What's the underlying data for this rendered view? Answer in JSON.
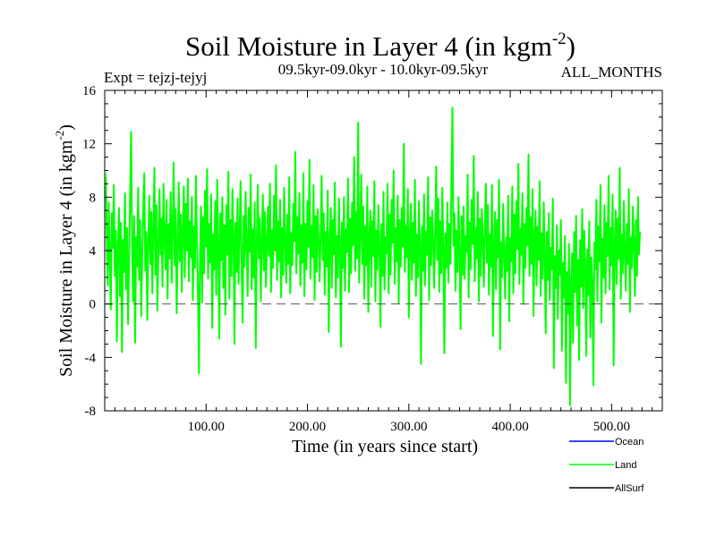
{
  "chart_data": {
    "type": "line",
    "title": "Soil Moisture in Layer 4 (in kgm",
    "title_sup": "-2",
    "title_close": ")",
    "subtitle_left": "Expt = tejzj-tejyj",
    "subtitle_center": "09.5kyr-09.0kyr - 10.0kyr-09.5kyr",
    "subtitle_right": "ALL_MONTHS",
    "xlabel": "Time (in years since start)",
    "ylabel": "Soil Moisture in Layer 4 (in kgm",
    "ylabel_sup": "-2",
    "ylabel_close": ")",
    "xlim": [
      0,
      550
    ],
    "ylim": [
      -8,
      16
    ],
    "xticks": [
      100,
      200,
      300,
      400,
      500
    ],
    "xtick_labels": [
      "100.00",
      "200.00",
      "300.00",
      "400.00",
      "500.00"
    ],
    "yticks": [
      -8,
      -4,
      0,
      4,
      8,
      12,
      16
    ],
    "ytick_labels": [
      "-8",
      "-4",
      "0",
      "4",
      "8",
      "12",
      "16"
    ],
    "reference_line": 0,
    "series": [
      {
        "name": "Land",
        "color": "#00ff00",
        "x_start": 1,
        "x_step": 1,
        "values": [
          9.8,
          5.2,
          1.4,
          7.6,
          3.1,
          -0.4,
          6.8,
          4.2,
          8.9,
          2.1,
          5.5,
          -2.8,
          3.9,
          7.2,
          0.6,
          6.1,
          -3.6,
          4.8,
          2.4,
          8.3,
          1.1,
          5.7,
          -1.5,
          3.3,
          7.9,
          12.9,
          4.4,
          0.2,
          6.6,
          -2.9,
          5.0,
          2.8,
          8.7,
          1.8,
          6.3,
          -0.9,
          3.6,
          7.0,
          9.8,
          2.5,
          5.4,
          -1.2,
          4.7,
          8.1,
          3.0,
          6.9,
          0.8,
          5.9,
          10.2,
          2.2,
          7.4,
          -0.5,
          4.1,
          8.6,
          3.7,
          6.4,
          1.3,
          9.0,
          5.1,
          2.6,
          7.8,
          0.4,
          6.0,
          3.4,
          8.4,
          1.6,
          5.6,
          10.6,
          2.9,
          7.1,
          -0.7,
          4.5,
          9.1,
          3.2,
          6.7,
          0.9,
          5.3,
          8.8,
          2.0,
          7.5,
          4.0,
          9.4,
          1.7,
          6.2,
          3.5,
          8.0,
          0.3,
          5.8,
          2.7,
          9.6,
          4.6,
          1.0,
          -5.2,
          3.8,
          7.3,
          0.1,
          6.5,
          2.3,
          8.5,
          4.3,
          10.1,
          1.9,
          6.0,
          3.1,
          8.2,
          -1.8,
          5.2,
          2.6,
          7.7,
          0.7,
          9.3,
          4.1,
          -2.6,
          6.8,
          3.3,
          8.0,
          1.2,
          5.9,
          -0.8,
          7.4,
          3.7,
          9.9,
          0.4,
          6.3,
          2.1,
          8.6,
          4.8,
          -3.0,
          6.1,
          2.4,
          7.9,
          1.5,
          5.4,
          9.2,
          3.0,
          -1.4,
          6.6,
          2.8,
          8.4,
          4.4,
          0.6,
          7.2,
          3.9,
          9.7,
          1.1,
          5.6,
          2.0,
          7.6,
          -3.3,
          4.6,
          8.9,
          3.4,
          6.4,
          0.2,
          5.0,
          8.2,
          2.5,
          6.9,
          1.3,
          4.2,
          7.3,
          3.6,
          9.0,
          0.9,
          5.5,
          2.7,
          8.1,
          4.0,
          10.4,
          1.8,
          6.2,
          3.2,
          7.8,
          0.5,
          5.7,
          2.2,
          8.7,
          4.5,
          1.6,
          6.7,
          3.0,
          9.5,
          0.8,
          5.3,
          2.9,
          7.5,
          4.7,
          11.4,
          2.3,
          6.5,
          3.8,
          8.3,
          1.4,
          5.9,
          3.1,
          9.8,
          0.6,
          6.0,
          2.6,
          7.7,
          4.3,
          10.8,
          1.9,
          5.8,
          3.5,
          8.9,
          0.3,
          6.6,
          2.4,
          7.1,
          4.9,
          1.7,
          5.2,
          9.6,
          3.3,
          6.8,
          0.7,
          5.4,
          2.8,
          8.5,
          -2.1,
          4.6,
          7.2,
          1.2,
          6.3,
          3.7,
          9.1,
          0.5,
          5.1,
          2.0,
          7.9,
          4.2,
          -3.2,
          6.1,
          2.7,
          8.0,
          1.0,
          5.6,
          3.9,
          9.4,
          0.9,
          6.4,
          2.3,
          7.6,
          4.4,
          11.0,
          2.5,
          6.9,
          3.4,
          13.6,
          1.6,
          5.3,
          9.7,
          3.0,
          7.3,
          0.4,
          5.8,
          2.9,
          8.8,
          -0.6,
          4.8,
          7.0,
          1.3,
          6.2,
          3.6,
          9.2,
          0.2,
          5.5,
          2.6,
          7.4,
          4.1,
          -1.7,
          6.0,
          2.1,
          8.4,
          1.1,
          5.0,
          3.8,
          9.0,
          0.8,
          6.7,
          2.2,
          7.8,
          4.6,
          10.0,
          1.5,
          5.7,
          3.2,
          8.1,
          0.1,
          6.3,
          2.8,
          7.2,
          4.3,
          12.0,
          2.4,
          5.9,
          3.5,
          8.6,
          -1.0,
          4.9,
          7.5,
          1.8,
          6.1,
          3.1,
          9.3,
          0.6,
          5.2,
          2.0,
          7.7,
          4.0,
          -4.5,
          5.8,
          2.5,
          8.2,
          1.4,
          5.4,
          3.7,
          9.5,
          0.3,
          6.5,
          2.9,
          7.0,
          4.7,
          1.2,
          5.6,
          10.3,
          3.3,
          7.9,
          0.9,
          6.2,
          2.3,
          8.7,
          4.2,
          -3.7,
          5.3,
          2.7,
          7.6,
          1.6,
          6.0,
          3.0,
          9.1,
          14.7,
          4.4,
          6.8,
          1.0,
          5.5,
          2.4,
          8.0,
          3.6,
          -1.9,
          6.6,
          2.2,
          7.3,
          1.9,
          5.1,
          3.9,
          9.7,
          0.5,
          6.1,
          2.6,
          7.8,
          4.5,
          11.1,
          1.7,
          5.7,
          3.4,
          8.4,
          0.2,
          6.4,
          2.1,
          7.1,
          4.8,
          1.3,
          5.9,
          9.0,
          3.1,
          7.4,
          0.7,
          5.2,
          2.8,
          8.9,
          -2.4,
          4.3,
          6.9,
          1.1,
          6.3,
          3.5,
          9.3,
          -3.4,
          4.6,
          2.0,
          7.5,
          3.8,
          0.4,
          5.0,
          2.5,
          8.1,
          -1.3,
          4.9,
          3.2,
          8.8,
          0.8,
          6.7,
          2.3,
          7.7,
          4.1,
          10.5,
          1.5,
          5.6,
          3.7,
          8.3,
          0.0,
          6.0,
          2.7,
          7.2,
          4.4,
          11.2,
          2.1,
          6.5,
          3.0,
          8.6,
          -0.9,
          4.7,
          7.0,
          1.4,
          5.8,
          3.3,
          9.2,
          0.6,
          5.3,
          1.9,
          7.6,
          3.9,
          -2.2,
          5.4,
          1.8,
          6.8,
          0.3,
          4.2,
          2.6,
          7.9,
          -4.8,
          3.6,
          1.2,
          5.9,
          -1.1,
          4.0,
          2.2,
          6.3,
          -3.5,
          3.1,
          0.5,
          5.1,
          -5.9,
          2.4,
          -0.7,
          4.5,
          -7.6,
          1.6,
          3.8,
          -2.9,
          5.4,
          0.9,
          6.6,
          -1.6,
          3.3,
          -4.2,
          4.8,
          1.3,
          7.1,
          -0.3,
          5.5,
          2.8,
          -3.9,
          4.1,
          0.7,
          6.2,
          -2.5,
          3.5,
          1.9,
          -6.1,
          4.6,
          2.6,
          7.8,
          0.2,
          5.8,
          3.2,
          8.9,
          -1.4,
          4.9,
          2.0,
          7.4,
          0.8,
          6.1,
          3.6,
          9.6,
          1.1,
          5.7,
          2.9,
          8.2,
          -4.6,
          4.3,
          7.0,
          1.5,
          6.4,
          3.4,
          10.2,
          0.4,
          5.2,
          2.3,
          7.7,
          4.0,
          1.0,
          6.0,
          3.0,
          8.6,
          -0.6,
          5.0,
          2.7,
          7.3,
          4.5,
          0.6,
          6.3,
          2.1,
          8.0,
          3.7,
          5.4
        ]
      },
      {
        "name": "Ocean",
        "color": "#0000ff",
        "values": []
      },
      {
        "name": "AllSurf",
        "color": "#000000",
        "values": []
      }
    ],
    "legend": [
      {
        "label": "Ocean",
        "color": "#0000ff"
      },
      {
        "label": "Land",
        "color": "#00ff00"
      },
      {
        "label": "AllSurf",
        "color": "#000000"
      }
    ],
    "legend_position": "bottom-right"
  }
}
